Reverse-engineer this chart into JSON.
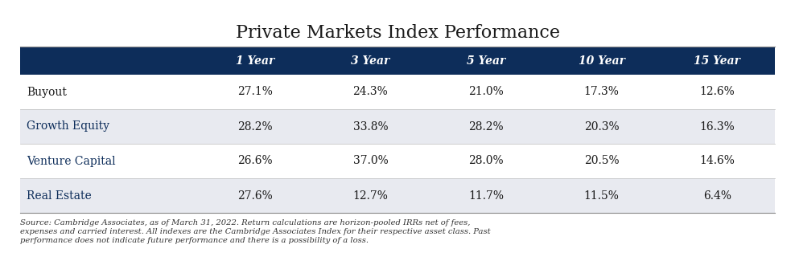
{
  "title": "Private Markets Index Performance",
  "header_bg_color": "#0d2d5a",
  "header_text_color": "#ffffff",
  "col_headers": [
    "1 Year",
    "3 Year",
    "5 Year",
    "10 Year",
    "15 Year"
  ],
  "row_labels": [
    "Buyout",
    "Growth Equity",
    "Venture Capital",
    "Real Estate"
  ],
  "row_label_colors": [
    "#1a1a1a",
    "#0d2d5a",
    "#0d2d5a",
    "#0d2d5a"
  ],
  "data": [
    [
      "27.1%",
      "24.3%",
      "21.0%",
      "17.3%",
      "12.6%"
    ],
    [
      "28.2%",
      "33.8%",
      "28.2%",
      "20.3%",
      "16.3%"
    ],
    [
      "26.6%",
      "37.0%",
      "28.0%",
      "20.5%",
      "14.6%"
    ],
    [
      "27.6%",
      "12.7%",
      "11.7%",
      "11.5%",
      "6.4%"
    ]
  ],
  "row_bg_colors": [
    "#ffffff",
    "#e8eaf0",
    "#ffffff",
    "#e8eaf0"
  ],
  "footnote_line1": "Source: Cambridge Associates, as of March 31, 2022. Return calculations are horizon-pooled IRRs net of fees,",
  "footnote_line2": "expenses and carried interest. All indexes are the Cambridge Associates Index for their respective asset class. Past",
  "footnote_line3": "performance does not indicate future performance and there is a possibility of a loss.",
  "title_fontsize": 16,
  "header_fontsize": 10,
  "cell_fontsize": 10,
  "footnote_fontsize": 7.2,
  "row_label_fontsize": 10
}
